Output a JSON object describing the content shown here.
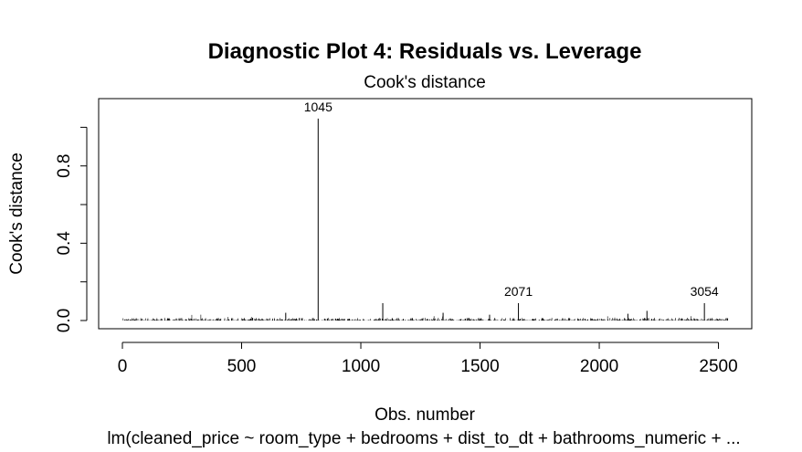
{
  "chart_data": {
    "type": "needle",
    "title": "Diagnostic Plot 4: Residuals vs. Leverage",
    "subtitle": "Cook's distance",
    "xlabel": "Obs. number",
    "ylabel": "Cook's distance",
    "caption": "lm(cleaned_price ~ room_type + bedrooms + dist_to_dt + bathrooms_numeric +  ...",
    "xlim": [
      0,
      2540
    ],
    "ylim": [
      0,
      1.12
    ],
    "x_ticks": [
      0,
      500,
      1000,
      1500,
      2000,
      2500
    ],
    "x_tick_labels": [
      "0",
      "500",
      "1000",
      "1500",
      "2000",
      "2500"
    ],
    "y_ticks": [
      0.0,
      0.4,
      0.8
    ],
    "y_tick_labels": [
      "0.0",
      "0.4",
      "0.8"
    ],
    "n_obs": 2540,
    "series": [
      {
        "values_notable": [
          {
            "x": 821,
            "y": 1.045,
            "label": "1045"
          },
          {
            "x": 1092,
            "y": 0.09
          },
          {
            "x": 1661,
            "y": 0.09,
            "label": "2071"
          },
          {
            "x": 2441,
            "y": 0.09,
            "label": "3054"
          },
          {
            "x": 685,
            "y": 0.04
          },
          {
            "x": 1345,
            "y": 0.04
          },
          {
            "x": 2200,
            "y": 0.05
          },
          {
            "x": 1540,
            "y": 0.03
          },
          {
            "x": 2120,
            "y": 0.035
          }
        ],
        "baseline_typical_max": 0.015
      }
    ],
    "grid": false,
    "legend": "none"
  }
}
